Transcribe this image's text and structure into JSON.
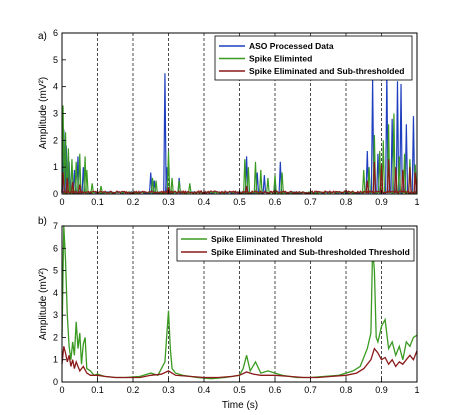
{
  "chart_data": [
    {
      "panel_label": "a)",
      "type": "line",
      "xlabel": "",
      "ylabel": "Amplitude  (mV²)",
      "xlim": [
        0,
        1
      ],
      "ylim": [
        0,
        6
      ],
      "x_ticks": [
        "0",
        "0.1",
        "0.2",
        "0.3",
        "0.4",
        "0.5",
        "0.6",
        "0.7",
        "0.8",
        "0.9",
        "1"
      ],
      "y_ticks": [
        "0",
        "1",
        "2",
        "3",
        "4",
        "5",
        "6"
      ],
      "vertical_gridlines": [
        0.1,
        0.2,
        0.3,
        0.4,
        0.5,
        0.6,
        0.7,
        0.8,
        0.9
      ],
      "legend_placement": "top-right",
      "series": [
        {
          "name": "ASO Processed Data",
          "color": "#1f3fbf",
          "spikes": [
            {
              "x": 0.005,
              "y": 2.4
            },
            {
              "x": 0.012,
              "y": 1.8
            },
            {
              "x": 0.02,
              "y": 1.2
            },
            {
              "x": 0.035,
              "y": 0.9
            },
            {
              "x": 0.045,
              "y": 1.4
            },
            {
              "x": 0.06,
              "y": 1.0
            },
            {
              "x": 0.25,
              "y": 0.8
            },
            {
              "x": 0.26,
              "y": 0.5
            },
            {
              "x": 0.29,
              "y": 4.5
            },
            {
              "x": 0.295,
              "y": 1.0
            },
            {
              "x": 0.33,
              "y": 0.6
            },
            {
              "x": 0.52,
              "y": 1.4
            },
            {
              "x": 0.55,
              "y": 0.8
            },
            {
              "x": 0.57,
              "y": 0.7
            },
            {
              "x": 0.6,
              "y": 0.5
            },
            {
              "x": 0.615,
              "y": 1.2
            },
            {
              "x": 0.86,
              "y": 1.6
            },
            {
              "x": 0.875,
              "y": 4.3
            },
            {
              "x": 0.89,
              "y": 1.5
            },
            {
              "x": 0.915,
              "y": 4.5
            },
            {
              "x": 0.93,
              "y": 2.8
            },
            {
              "x": 0.945,
              "y": 4.2
            },
            {
              "x": 0.955,
              "y": 4.1
            },
            {
              "x": 0.97,
              "y": 2.6
            },
            {
              "x": 0.99,
              "y": 2.9
            }
          ]
        },
        {
          "name": "Spike Eliminted",
          "color": "#3a9a22",
          "spikes": [
            {
              "x": 0.003,
              "y": 3.3
            },
            {
              "x": 0.01,
              "y": 2.3
            },
            {
              "x": 0.018,
              "y": 1.7
            },
            {
              "x": 0.028,
              "y": 1.3
            },
            {
              "x": 0.04,
              "y": 1.2
            },
            {
              "x": 0.05,
              "y": 1.5
            },
            {
              "x": 0.065,
              "y": 1.4
            },
            {
              "x": 0.07,
              "y": 0.9
            },
            {
              "x": 0.085,
              "y": 0.4
            },
            {
              "x": 0.11,
              "y": 0.3
            },
            {
              "x": 0.255,
              "y": 0.6
            },
            {
              "x": 0.265,
              "y": 0.5
            },
            {
              "x": 0.3,
              "y": 1.6
            },
            {
              "x": 0.31,
              "y": 0.6
            },
            {
              "x": 0.33,
              "y": 0.5
            },
            {
              "x": 0.36,
              "y": 0.4
            },
            {
              "x": 0.515,
              "y": 1.3
            },
            {
              "x": 0.525,
              "y": 1.0
            },
            {
              "x": 0.545,
              "y": 1.2
            },
            {
              "x": 0.56,
              "y": 0.9
            },
            {
              "x": 0.58,
              "y": 0.6
            },
            {
              "x": 0.6,
              "y": 0.7
            },
            {
              "x": 0.62,
              "y": 0.8
            },
            {
              "x": 0.85,
              "y": 0.9
            },
            {
              "x": 0.865,
              "y": 1.0
            },
            {
              "x": 0.88,
              "y": 2.2
            },
            {
              "x": 0.895,
              "y": 1.6
            },
            {
              "x": 0.905,
              "y": 2.0
            },
            {
              "x": 0.92,
              "y": 2.6
            },
            {
              "x": 0.935,
              "y": 3.0
            },
            {
              "x": 0.95,
              "y": 1.4
            },
            {
              "x": 0.965,
              "y": 1.5
            },
            {
              "x": 0.98,
              "y": 1.3
            },
            {
              "x": 0.995,
              "y": 1.1
            }
          ]
        },
        {
          "name": "Spike Eliminated and Sub-thresholded",
          "color": "#8b1a1a",
          "spikes": [
            {
              "x": 0.003,
              "y": 0.8
            },
            {
              "x": 0.015,
              "y": 0.6
            },
            {
              "x": 0.03,
              "y": 0.45
            },
            {
              "x": 0.05,
              "y": 0.35
            },
            {
              "x": 0.3,
              "y": 0.25
            },
            {
              "x": 0.52,
              "y": 0.3
            },
            {
              "x": 0.86,
              "y": 0.5
            },
            {
              "x": 0.88,
              "y": 1.2
            },
            {
              "x": 0.9,
              "y": 1.1
            },
            {
              "x": 0.92,
              "y": 1.3
            },
            {
              "x": 0.94,
              "y": 1.0
            },
            {
              "x": 0.96,
              "y": 0.9
            },
            {
              "x": 0.98,
              "y": 1.0
            },
            {
              "x": 0.995,
              "y": 0.8
            }
          ]
        }
      ]
    },
    {
      "panel_label": "b)",
      "type": "line",
      "xlabel": "Time (s)",
      "ylabel": "Amplitude  (mV²)",
      "xlim": [
        0,
        1
      ],
      "ylim": [
        0,
        7
      ],
      "x_ticks": [
        "0",
        "0.1",
        "0.2",
        "0.3",
        "0.4",
        "0.5",
        "0.6",
        "0.7",
        "0.8",
        "0.9",
        "1"
      ],
      "y_ticks": [
        "0",
        "1",
        "2",
        "3",
        "4",
        "5",
        "6",
        "7"
      ],
      "vertical_gridlines": [
        0.1,
        0.2,
        0.3,
        0.4,
        0.5,
        0.6,
        0.7,
        0.8,
        0.9
      ],
      "legend_placement": "top-right",
      "series": [
        {
          "name": "Spike Eliminated Threshold",
          "color": "#3a9a22",
          "points": [
            [
              0.0,
              2.0
            ],
            [
              0.005,
              7.0
            ],
            [
              0.01,
              5.5
            ],
            [
              0.015,
              3.0
            ],
            [
              0.02,
              1.6
            ],
            [
              0.025,
              1.0
            ],
            [
              0.03,
              1.8
            ],
            [
              0.035,
              1.2
            ],
            [
              0.04,
              2.7
            ],
            [
              0.045,
              1.5
            ],
            [
              0.05,
              2.2
            ],
            [
              0.055,
              0.8
            ],
            [
              0.06,
              1.7
            ],
            [
              0.065,
              2.0
            ],
            [
              0.07,
              0.6
            ],
            [
              0.08,
              0.5
            ],
            [
              0.09,
              0.3
            ],
            [
              0.1,
              0.35
            ],
            [
              0.12,
              0.25
            ],
            [
              0.15,
              0.2
            ],
            [
              0.18,
              0.2
            ],
            [
              0.22,
              0.25
            ],
            [
              0.25,
              0.4
            ],
            [
              0.27,
              0.3
            ],
            [
              0.29,
              0.9
            ],
            [
              0.3,
              3.2
            ],
            [
              0.305,
              1.5
            ],
            [
              0.31,
              0.6
            ],
            [
              0.32,
              0.4
            ],
            [
              0.34,
              0.3
            ],
            [
              0.38,
              0.2
            ],
            [
              0.42,
              0.15
            ],
            [
              0.46,
              0.2
            ],
            [
              0.5,
              0.3
            ],
            [
              0.51,
              0.6
            ],
            [
              0.52,
              1.2
            ],
            [
              0.53,
              0.5
            ],
            [
              0.545,
              0.9
            ],
            [
              0.56,
              0.4
            ],
            [
              0.58,
              0.5
            ],
            [
              0.6,
              0.4
            ],
            [
              0.62,
              0.3
            ],
            [
              0.66,
              0.2
            ],
            [
              0.7,
              0.2
            ],
            [
              0.74,
              0.25
            ],
            [
              0.78,
              0.3
            ],
            [
              0.82,
              0.5
            ],
            [
              0.84,
              0.7
            ],
            [
              0.86,
              1.5
            ],
            [
              0.87,
              2.2
            ],
            [
              0.875,
              6.0
            ],
            [
              0.88,
              5.0
            ],
            [
              0.885,
              2.0
            ],
            [
              0.89,
              1.8
            ],
            [
              0.9,
              2.5
            ],
            [
              0.91,
              2.8
            ],
            [
              0.92,
              1.5
            ],
            [
              0.93,
              1.8
            ],
            [
              0.94,
              1.2
            ],
            [
              0.95,
              1.6
            ],
            [
              0.96,
              1.0
            ],
            [
              0.97,
              1.8
            ],
            [
              0.98,
              1.6
            ],
            [
              0.99,
              2.0
            ],
            [
              1.0,
              2.1
            ]
          ]
        },
        {
          "name": "Spike Eliminated and Sub-thresholded Threshold",
          "color": "#8b1a1a",
          "points": [
            [
              0.0,
              0.8
            ],
            [
              0.005,
              1.6
            ],
            [
              0.01,
              1.3
            ],
            [
              0.015,
              0.9
            ],
            [
              0.02,
              1.2
            ],
            [
              0.025,
              0.7
            ],
            [
              0.03,
              1.0
            ],
            [
              0.035,
              0.6
            ],
            [
              0.04,
              0.9
            ],
            [
              0.05,
              0.5
            ],
            [
              0.06,
              0.7
            ],
            [
              0.07,
              0.4
            ],
            [
              0.08,
              0.3
            ],
            [
              0.1,
              0.3
            ],
            [
              0.12,
              0.25
            ],
            [
              0.15,
              0.2
            ],
            [
              0.18,
              0.2
            ],
            [
              0.22,
              0.2
            ],
            [
              0.25,
              0.3
            ],
            [
              0.28,
              0.35
            ],
            [
              0.3,
              0.5
            ],
            [
              0.32,
              0.3
            ],
            [
              0.36,
              0.25
            ],
            [
              0.4,
              0.2
            ],
            [
              0.44,
              0.2
            ],
            [
              0.48,
              0.25
            ],
            [
              0.5,
              0.3
            ],
            [
              0.52,
              0.45
            ],
            [
              0.54,
              0.35
            ],
            [
              0.56,
              0.3
            ],
            [
              0.6,
              0.3
            ],
            [
              0.64,
              0.25
            ],
            [
              0.68,
              0.2
            ],
            [
              0.72,
              0.2
            ],
            [
              0.76,
              0.25
            ],
            [
              0.8,
              0.3
            ],
            [
              0.83,
              0.4
            ],
            [
              0.85,
              0.6
            ],
            [
              0.87,
              1.0
            ],
            [
              0.88,
              1.5
            ],
            [
              0.89,
              1.3
            ],
            [
              0.9,
              1.0
            ],
            [
              0.91,
              1.1
            ],
            [
              0.92,
              0.8
            ],
            [
              0.93,
              1.0
            ],
            [
              0.94,
              0.7
            ],
            [
              0.95,
              0.9
            ],
            [
              0.96,
              0.8
            ],
            [
              0.97,
              1.0
            ],
            [
              0.98,
              1.2
            ],
            [
              0.99,
              1.0
            ],
            [
              1.0,
              1.4
            ]
          ]
        }
      ]
    }
  ]
}
